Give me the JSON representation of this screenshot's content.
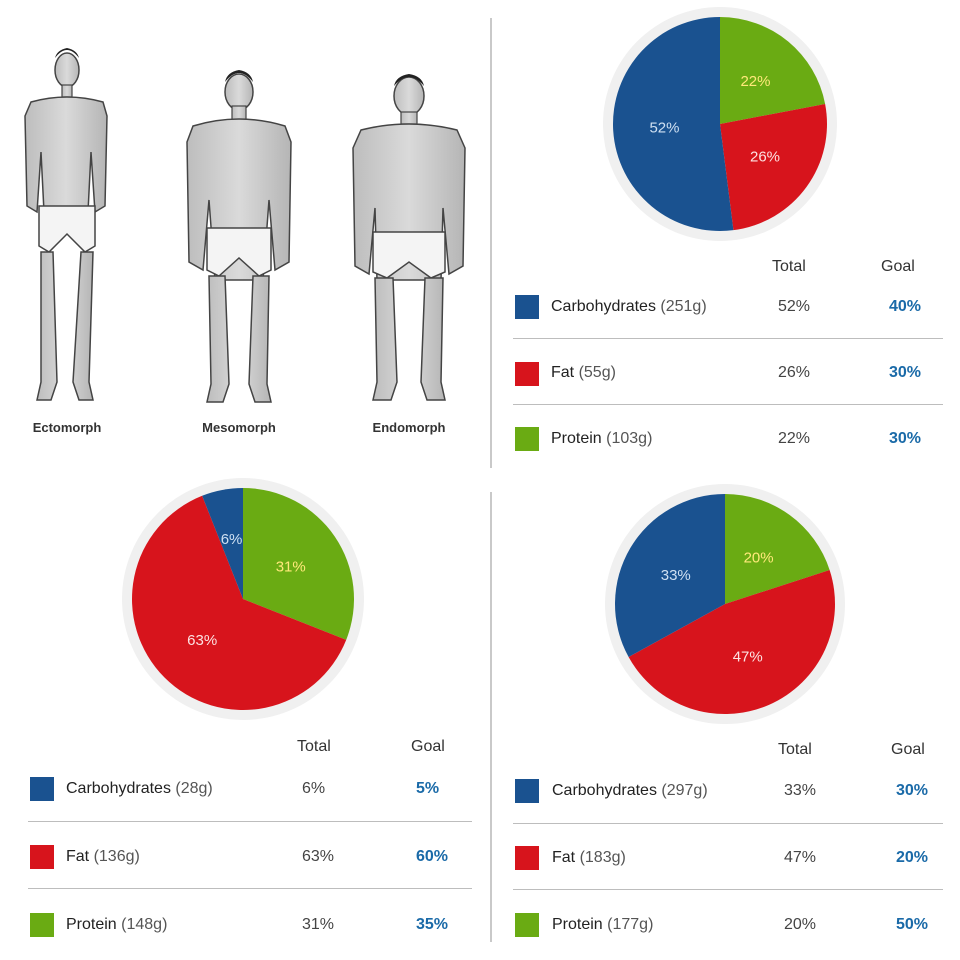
{
  "colors": {
    "carbohydrates": "#1a5290",
    "fat": "#d7141c",
    "protein": "#6aab13",
    "goal_text": "#1a6aa8"
  },
  "body_types": [
    {
      "label": "Ectomorph"
    },
    {
      "label": "Mesomorph"
    },
    {
      "label": "Endomorph"
    }
  ],
  "chart_data": [
    {
      "type": "pie",
      "slices": [
        {
          "label": "Protein",
          "value": 22,
          "text": "22%"
        },
        {
          "label": "Fat",
          "value": 26,
          "text": "26%"
        },
        {
          "label": "Carbohydrates",
          "value": 52,
          "text": "52%"
        }
      ],
      "table": {
        "headers": {
          "total": "Total",
          "goal": "Goal"
        },
        "rows": [
          {
            "name": "Carbohydrates",
            "grams": "(251g)",
            "total": "52%",
            "goal": "40%"
          },
          {
            "name": "Fat",
            "grams": "(55g)",
            "total": "26%",
            "goal": "30%"
          },
          {
            "name": "Protein",
            "grams": "(103g)",
            "total": "22%",
            "goal": "30%"
          }
        ]
      }
    },
    {
      "type": "pie",
      "slices": [
        {
          "label": "Protein",
          "value": 31,
          "text": "31%"
        },
        {
          "label": "Fat",
          "value": 63,
          "text": "63%"
        },
        {
          "label": "Carbohydrates",
          "value": 6,
          "text": "6%"
        }
      ],
      "table": {
        "headers": {
          "total": "Total",
          "goal": "Goal"
        },
        "rows": [
          {
            "name": "Carbohydrates",
            "grams": "(28g)",
            "total": "6%",
            "goal": "5%"
          },
          {
            "name": "Fat",
            "grams": "(136g)",
            "total": "63%",
            "goal": "60%"
          },
          {
            "name": "Protein",
            "grams": "(148g)",
            "total": "31%",
            "goal": "35%"
          }
        ]
      }
    },
    {
      "type": "pie",
      "slices": [
        {
          "label": "Protein",
          "value": 20,
          "text": "20%"
        },
        {
          "label": "Fat",
          "value": 47,
          "text": "47%"
        },
        {
          "label": "Carbohydrates",
          "value": 33,
          "text": "33%"
        }
      ],
      "table": {
        "headers": {
          "total": "Total",
          "goal": "Goal"
        },
        "rows": [
          {
            "name": "Carbohydrates",
            "grams": "(297g)",
            "total": "33%",
            "goal": "30%"
          },
          {
            "name": "Fat",
            "grams": "(183g)",
            "total": "47%",
            "goal": "20%"
          },
          {
            "name": "Protein",
            "grams": "(177g)",
            "total": "20%",
            "goal": "50%"
          }
        ]
      }
    }
  ]
}
